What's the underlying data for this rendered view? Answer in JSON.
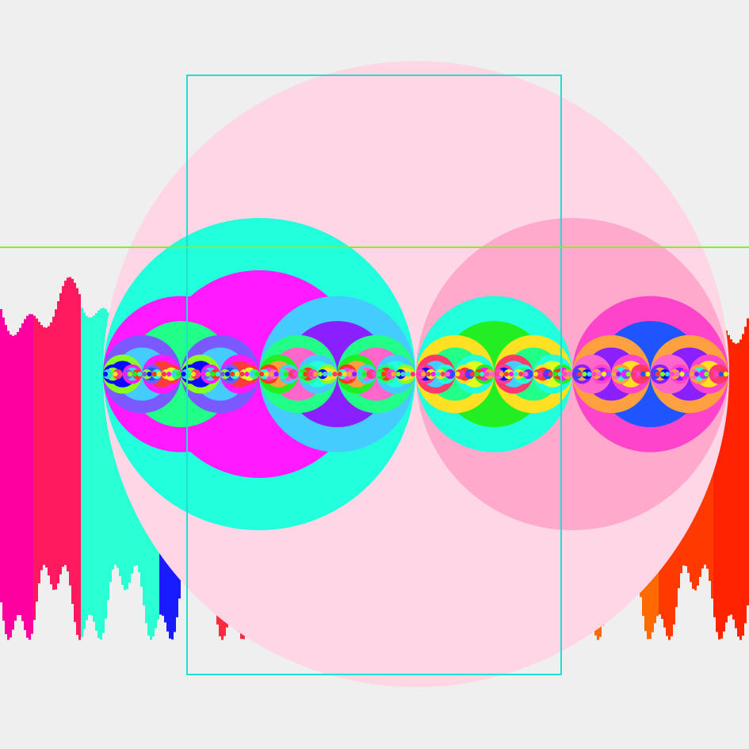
{
  "scene": {
    "background": "#efefef",
    "waveform_colors": [
      "#ff00a0",
      "#ff1a60",
      "#ff2a40",
      "#ff4a1a",
      "#2affd4",
      "#1a1aff",
      "#ff3a00",
      "#ff6a00",
      "#e0e000",
      "#ff2200"
    ],
    "main_circle_color": "#ffd6e6",
    "left_circle_color": "#22ffdd",
    "right_circle_color": "#ffaacc",
    "rect_color": "#1ee0d0",
    "line_color": "#88ee22",
    "palette": [
      "#ff1aff",
      "#22ffdd",
      "#1e55ff",
      "#22ff88",
      "#ffa040",
      "#88ff22",
      "#ff3a6a",
      "#ddff22",
      "#ff3a1a",
      "#8a20ff",
      "#44ccff",
      "#ff44cc",
      "#7a5aff",
      "#ffe022",
      "#ff3a3a",
      "#22ee22",
      "#ff66cc",
      "#0a0aff",
      "#ff3a99"
    ]
  }
}
